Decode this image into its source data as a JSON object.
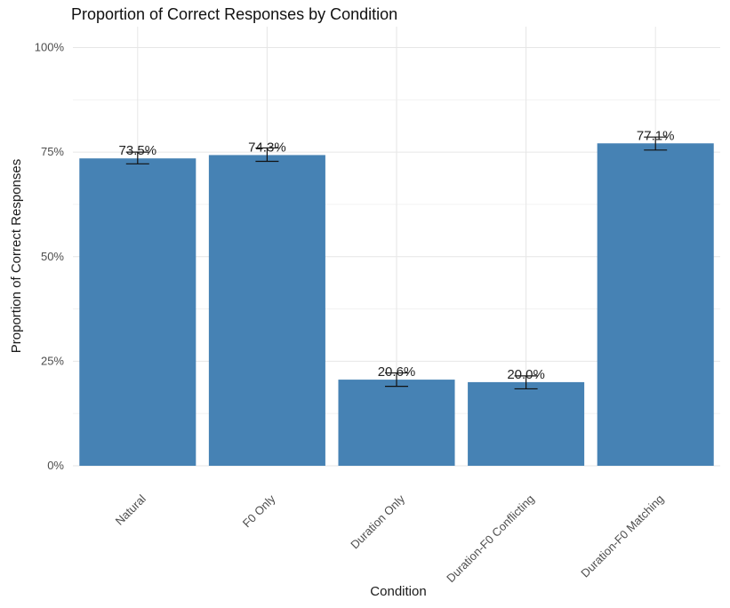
{
  "chart_data": {
    "type": "bar",
    "title": "Proportion of Correct Responses by Condition",
    "xlabel": "Condition",
    "ylabel": "Proportion of Correct Responses",
    "categories": [
      "Natural",
      "F0 Only",
      "Duration Only",
      "Duration-F0 Conflicting",
      "Duration-F0 Matching"
    ],
    "values": [
      0.735,
      0.743,
      0.206,
      0.2,
      0.771
    ],
    "value_labels": [
      "73.5%",
      "74.3%",
      "20.6%",
      "20.0%",
      "77.1%"
    ],
    "error_low": [
      0.722,
      0.728,
      0.19,
      0.184,
      0.755
    ],
    "error_high": [
      0.75,
      0.76,
      0.222,
      0.215,
      0.786
    ],
    "ylim": [
      0,
      1.05
    ],
    "y_ticks": [
      0,
      0.25,
      0.5,
      0.75,
      1.0
    ],
    "y_tick_labels": [
      "0%",
      "25%",
      "50%",
      "75%",
      "100%"
    ],
    "grid": true,
    "legend": "none",
    "bar_color": "#4682B4"
  }
}
